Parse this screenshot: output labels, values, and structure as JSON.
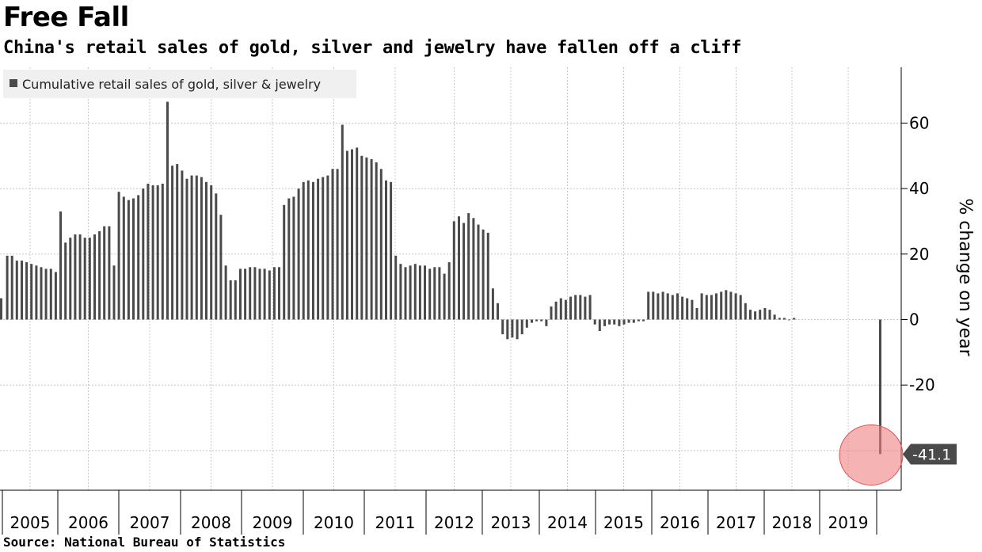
{
  "title": "Free Fall",
  "subtitle": "China's retail sales of gold, silver and jewelry have fallen off a cliff",
  "source": "Source: National Bureau of Statistics",
  "colors": {
    "bar": "#4a4a4a",
    "grid": "#c8c8c8",
    "highlight": "#f08080",
    "callout_bg": "#4a4a4a"
  },
  "chart_data": {
    "type": "bar",
    "ylabel": "% change on year",
    "ylim": [
      -52,
      77
    ],
    "yticks": [
      60,
      40,
      20,
      0,
      -20
    ],
    "ytick_labels": [
      "60",
      "40",
      "20",
      "0",
      "-20"
    ],
    "grid": true,
    "legend": {
      "position": "top-left",
      "entries": [
        "Cumulative retail sales of gold, silver & jewelry"
      ]
    },
    "years": [
      "2005",
      "2006",
      "2007",
      "2008",
      "2009",
      "2010",
      "2011",
      "2012",
      "2013",
      "2014",
      "2015",
      "2016",
      "2017",
      "2018",
      "2019"
    ],
    "series": [
      {
        "name": "Cumulative retail sales of gold, silver & jewelry",
        "x_start": "2004-12",
        "values": [
          6.5,
          19.5,
          19.5,
          18,
          18,
          17.5,
          17,
          16.5,
          16,
          15.5,
          15.5,
          14.5,
          33,
          23.5,
          25,
          26,
          26,
          25,
          25,
          26,
          27,
          28.5,
          28.5,
          16.5,
          39,
          37.5,
          36.5,
          37,
          38,
          40,
          41.5,
          41,
          41,
          41.5,
          66.5,
          47,
          47.5,
          45.5,
          43,
          44,
          44,
          43.5,
          42,
          41,
          38.5,
          32,
          16.5,
          12,
          12,
          15.5,
          15.5,
          16,
          16,
          15.5,
          15.5,
          15,
          16,
          16,
          35,
          37,
          37.5,
          40,
          42,
          42.5,
          42,
          43,
          43.5,
          44,
          46,
          46,
          59.5,
          51.5,
          52,
          52.5,
          50,
          49.5,
          49,
          48,
          46,
          42.5,
          42,
          19.5,
          17,
          16,
          16.5,
          17,
          16.5,
          16.5,
          15.5,
          16,
          16,
          14,
          17.5,
          30,
          31.5,
          29.5,
          32.5,
          31,
          29,
          27.5,
          26.5,
          9.5,
          5,
          -4.5,
          -6,
          -5.5,
          -6,
          -4.5,
          -2.5,
          -1,
          -0.5,
          -0.5,
          -2,
          4,
          5.5,
          6.5,
          6,
          7,
          7.5,
          7.5,
          7,
          7.5,
          -1.5,
          -3.5,
          -2,
          -1.5,
          -1.5,
          -2,
          -1.5,
          -1,
          -1,
          -0.5,
          -0.5,
          8.5,
          8.5,
          8,
          8.5,
          8,
          7.5,
          8,
          7,
          6.5,
          6,
          3.5,
          8,
          7.5,
          7.5,
          8,
          8.5,
          9,
          8.5,
          8,
          7.5,
          5,
          3,
          2.5,
          3,
          3.5,
          3,
          1.5,
          0.5,
          0.5,
          0,
          0.5,
          -41.1
        ]
      }
    ],
    "last_value_label": "-41.1"
  }
}
